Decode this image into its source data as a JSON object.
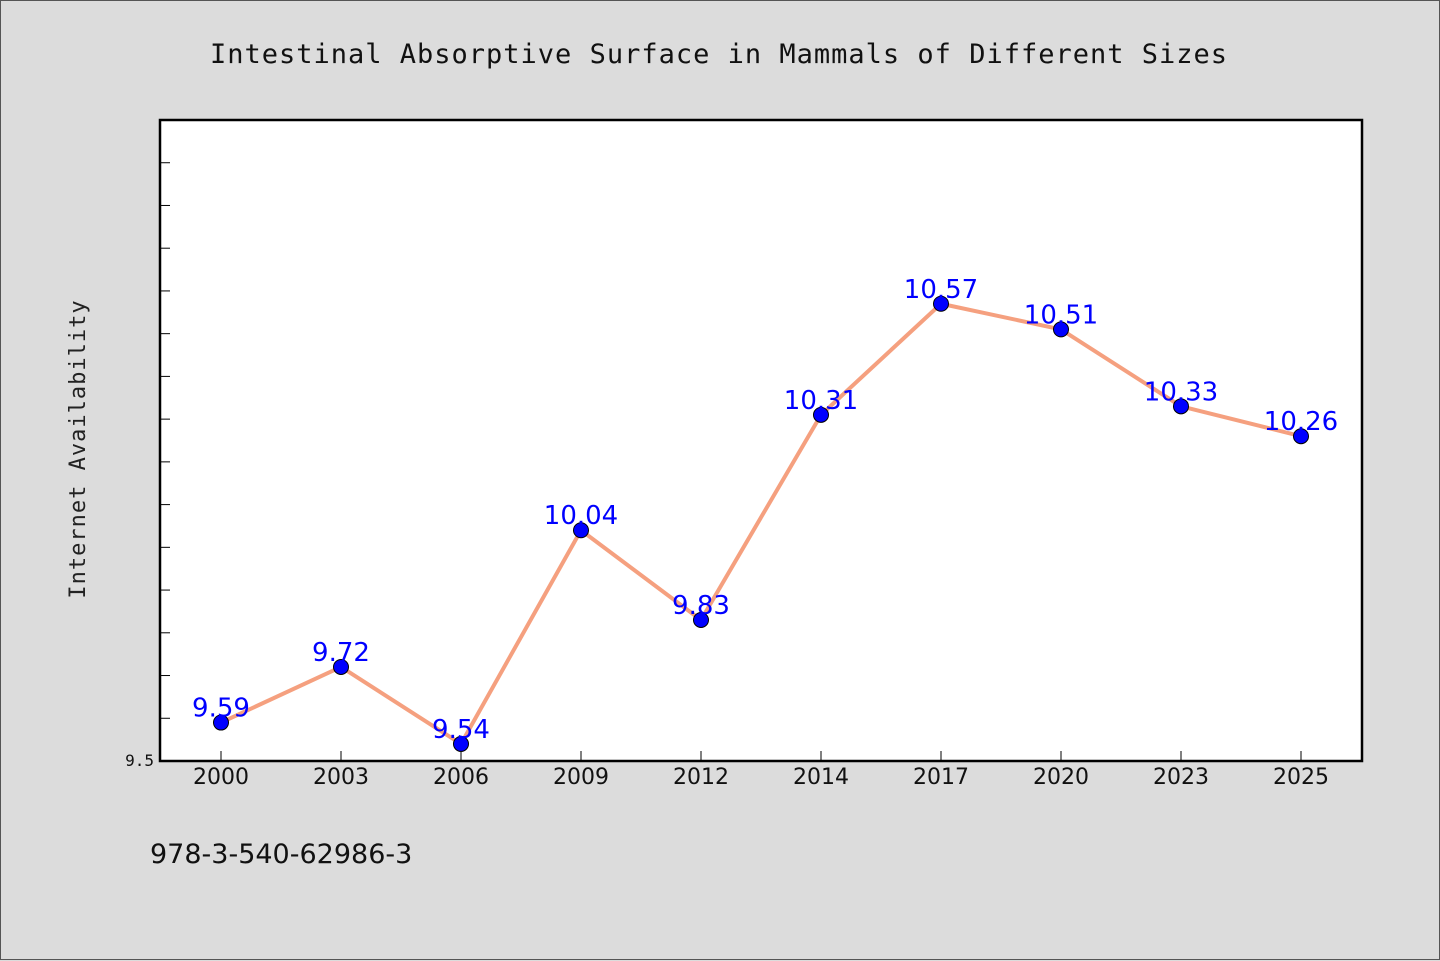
{
  "chart_data": {
    "type": "line",
    "title": "Intestinal Absorptive Surface in Mammals of Different Sizes",
    "xlabel": "",
    "ylabel": "Internet Availability",
    "categories": [
      "2000",
      "2003",
      "2006",
      "2009",
      "2012",
      "2014",
      "2017",
      "2020",
      "2023",
      "2025"
    ],
    "series": [
      {
        "values": [
          9.59,
          9.72,
          9.54,
          10.04,
          9.83,
          10.31,
          10.57,
          10.51,
          10.33,
          10.26
        ]
      }
    ],
    "data_labels": [
      "9.59",
      "9.72",
      "9.54",
      "10.04",
      "9.83",
      "10.31",
      "10.57",
      "10.51",
      "10.33",
      "10.26"
    ],
    "ylim": [
      9.5,
      11.0
    ],
    "y_tick_labels": [
      "9.5"
    ],
    "grid": false,
    "legend": "none",
    "colors": {
      "line": "#f5a07f",
      "marker": "#0000ff",
      "label": "#0000ff",
      "plot_bg": "#ffffff",
      "page_bg": "#dcdcdc"
    }
  },
  "footnote": "978-3-540-62986-3"
}
